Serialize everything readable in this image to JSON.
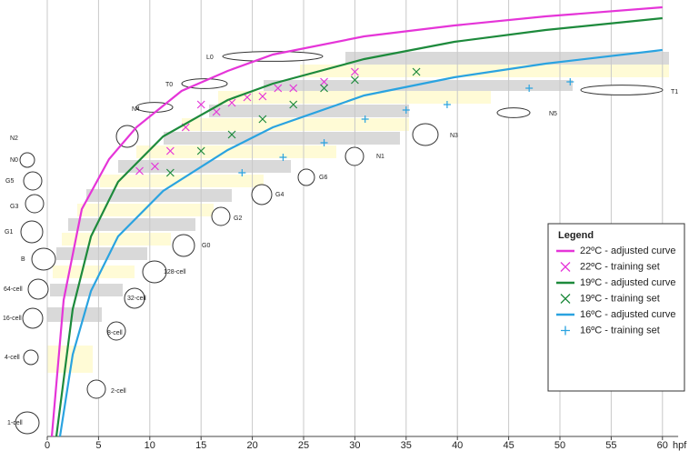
{
  "chart_data": {
    "type": "line",
    "x_label": "hpf",
    "xlim": [
      0,
      61
    ],
    "xticks": [
      0,
      5,
      10,
      15,
      20,
      25,
      30,
      35,
      40,
      45,
      50,
      55,
      60
    ],
    "ylim": [
      0,
      480
    ],
    "grid": true,
    "legend_title": "Legend",
    "legend_position": "right",
    "stages": [
      "1-cell",
      "2-cell",
      "4-cell",
      "8-cell",
      "16-cell",
      "32-cell",
      "64-cell",
      "128-cell",
      "B",
      "G0",
      "G1",
      "G2",
      "G3",
      "G4",
      "G5",
      "G6",
      "N0",
      "N1",
      "N2",
      "N3",
      "N4",
      "N5",
      "T0",
      "T1",
      "L0"
    ],
    "series": [
      {
        "name": "22ºC - adjusted curve",
        "kind": "line",
        "color": "#e535d8",
        "x": [
          0.44,
          1.6,
          3.37,
          6.03,
          8.69,
          13.1,
          17.6,
          22.0,
          30.9,
          39.7,
          48.6,
          60
        ],
        "values": [
          0,
          150,
          250,
          305,
          340,
          380,
          402,
          420,
          440,
          452,
          462,
          472
        ]
      },
      {
        "name": "22ºC - training set",
        "kind": "scatter",
        "marker": "x",
        "color": "#e535d8",
        "x": [
          9,
          10.5,
          12,
          13.5,
          15,
          16.5,
          18,
          19.5,
          21,
          22.5,
          24,
          27,
          30
        ],
        "values": [
          292,
          297,
          314,
          340,
          365,
          357,
          367,
          373,
          374,
          383,
          383,
          390,
          401
        ]
      },
      {
        "name": "19ºC - adjusted curve",
        "kind": "line",
        "color": "#1d8a3c",
        "x": [
          0.89,
          2.48,
          4.26,
          6.91,
          11.3,
          17.6,
          22.0,
          30.9,
          39.7,
          48.6,
          60
        ],
        "values": [
          0,
          140,
          220,
          280,
          330,
          370,
          388,
          415,
          434,
          447,
          460
        ]
      },
      {
        "name": "19ºC - training set",
        "kind": "scatter",
        "marker": "x",
        "color": "#1d8a3c",
        "x": [
          12,
          15,
          18,
          21,
          24,
          27,
          30,
          36
        ],
        "values": [
          290,
          314,
          332,
          349,
          365,
          383,
          392,
          401
        ]
      },
      {
        "name": "16ºC - adjusted curve",
        "kind": "line",
        "color": "#2aa3e0",
        "x": [
          1.24,
          2.48,
          4.26,
          6.91,
          11.3,
          17.6,
          22.0,
          30.9,
          39.7,
          48.6,
          60
        ],
        "values": [
          0,
          90,
          160,
          220,
          270,
          315,
          340,
          375,
          395,
          410,
          425
        ]
      },
      {
        "name": "16ºC - training set",
        "kind": "scatter",
        "marker": "+",
        "color": "#2aa3e0",
        "x": [
          19,
          23,
          27,
          31,
          35,
          39,
          47,
          51
        ],
        "values": [
          290,
          307,
          323,
          349,
          359,
          365,
          383,
          390
        ]
      }
    ]
  }
}
